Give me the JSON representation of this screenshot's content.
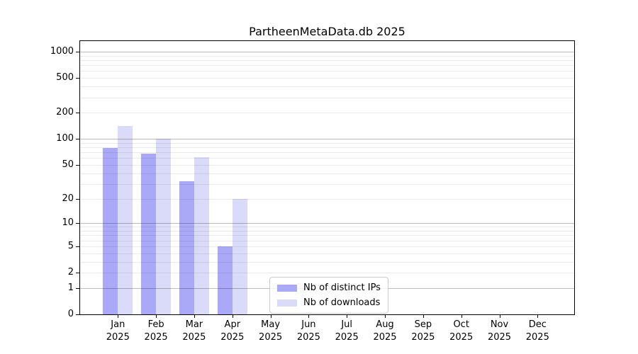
{
  "chart_data": {
    "type": "bar",
    "title": "PartheenMetaData.db 2025",
    "x_categories": [
      "Jan",
      "Feb",
      "Mar",
      "Apr",
      "May",
      "Jun",
      "Jul",
      "Aug",
      "Sep",
      "Oct",
      "Nov",
      "Dec"
    ],
    "x_year_label": "2025",
    "series": [
      {
        "name": "Nb of distinct IPs",
        "color": "#a9a9f8",
        "values": [
          78,
          67,
          32,
          5,
          0,
          0,
          0,
          0,
          0,
          0,
          0,
          0
        ]
      },
      {
        "name": "Nb of downloads",
        "color": "#dadaf9",
        "values": [
          140,
          100,
          62,
          20,
          0,
          0,
          0,
          0,
          0,
          0,
          0,
          0
        ]
      }
    ],
    "yticks": [
      0,
      1,
      2,
      5,
      10,
      20,
      50,
      100,
      200,
      500,
      1000
    ],
    "ylim": [
      0,
      1000
    ],
    "yscale": "log10(1+v)",
    "grid": "major and minor horizontal gridlines",
    "legend_position": "inside, lower center"
  },
  "colors": {
    "bar_distinct_ips": "#a9a9f8",
    "bar_downloads": "#dadaf9",
    "major_gridline": "#bdbdbd",
    "minor_gridline": "#ececec",
    "axis_spine": "#000000",
    "legend_border": "#cccccc"
  }
}
